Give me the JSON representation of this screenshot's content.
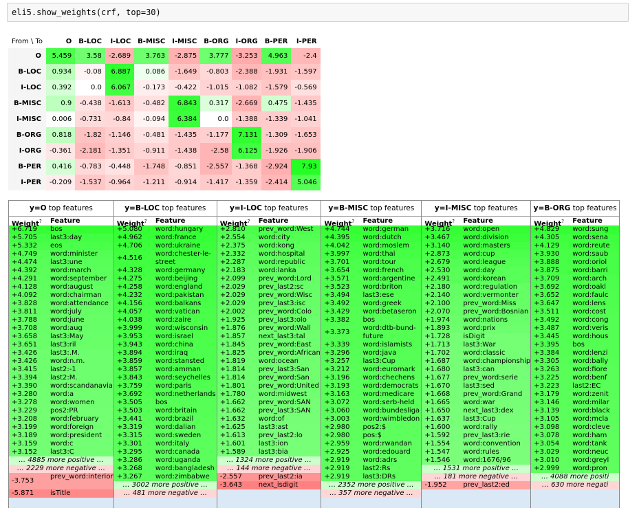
{
  "code_cell": {
    "text": "eli5.show_weights(crf, top=30)"
  },
  "transitions": {
    "corner": "From \\ To",
    "labels": [
      "O",
      "B-LOC",
      "I-LOC",
      "B-MISC",
      "I-MISC",
      "B-ORG",
      "I-ORG",
      "B-PER",
      "I-PER"
    ],
    "rows": [
      [
        "5.459",
        "3.58",
        "-2.689",
        "3.763",
        "-2.875",
        "3.777",
        "-3.253",
        "4.963",
        "-2.4"
      ],
      [
        "0.934",
        "-0.08",
        "6.887",
        "0.086",
        "-1.649",
        "-0.803",
        "-2.388",
        "-1.931",
        "-1.597"
      ],
      [
        "0.392",
        "0.0",
        "6.067",
        "-0.173",
        "-0.422",
        "-1.015",
        "-1.082",
        "-1.579",
        "-0.569"
      ],
      [
        "0.9",
        "-0.438",
        "-1.613",
        "-0.482",
        "6.843",
        "0.317",
        "-2.669",
        "0.475",
        "-1.435"
      ],
      [
        "0.006",
        "-0.731",
        "-0.84",
        "-0.094",
        "6.384",
        "0.0",
        "-1.388",
        "-1.339",
        "-1.041"
      ],
      [
        "0.818",
        "-1.82",
        "-1.146",
        "-0.481",
        "-1.435",
        "-1.177",
        "7.131",
        "-1.309",
        "-1.653"
      ],
      [
        "-0.361",
        "-2.181",
        "-1.351",
        "-0.911",
        "-1.438",
        "-2.58",
        "6.125",
        "-1.926",
        "-1.906"
      ],
      [
        "0.416",
        "-0.783",
        "-0.448",
        "-1.748",
        "-0.851",
        "-2.557",
        "-1.368",
        "-2.924",
        "7.93"
      ],
      [
        "-0.209",
        "-1.537",
        "-0.964",
        "-1.211",
        "-0.914",
        "-1.417",
        "-1.359",
        "-2.414",
        "5.046"
      ]
    ]
  },
  "feature_headers": {
    "weight": "Weight",
    "weight_sup": "?",
    "feature": "Feature",
    "title_suffix": "top features"
  },
  "feature_tables": [
    {
      "label": "y=O",
      "pos": [
        [
          "+6.719",
          "bos"
        ],
        [
          "+5.705",
          "last3:day"
        ],
        [
          "+5.332",
          "eos"
        ],
        [
          "+4.749",
          "word:minister"
        ],
        [
          "+4.474",
          "last3:une"
        ],
        [
          "+4.392",
          "word:march"
        ],
        [
          "+4.291",
          "word:september"
        ],
        [
          "+4.128",
          "word:august"
        ],
        [
          "+4.092",
          "word:chairman"
        ],
        [
          "+3.828",
          "word:attendance"
        ],
        [
          "+3.811",
          "word:july"
        ],
        [
          "+3.788",
          "word:june"
        ],
        [
          "+3.708",
          "word:aug"
        ],
        [
          "+3.658",
          "last3:May"
        ],
        [
          "+3.651",
          "last3:ril"
        ],
        [
          "+3.426",
          "last3:.M."
        ],
        [
          "+3.426",
          "word:n.m."
        ],
        [
          "+3.415",
          "last2:-1"
        ],
        [
          "+3.394",
          "last2:M."
        ],
        [
          "+3.390",
          "word:scandanavia"
        ],
        [
          "+3.280",
          "word:a"
        ],
        [
          "+3.278",
          "word:women"
        ],
        [
          "+3.229",
          "pos2:PR"
        ],
        [
          "+3.208",
          "word:february"
        ],
        [
          "+3.199",
          "word:foreign"
        ],
        [
          "+3.189",
          "word:president"
        ],
        [
          "+3.159",
          "word:c"
        ],
        [
          "+3.152",
          "last3:C"
        ]
      ],
      "pos_more": "… 4885 more positive …",
      "neg_more": "… 2229 more negative …",
      "neg": [
        [
          "-3.753",
          "prev_word:interior"
        ],
        [
          "-5.871",
          "isTitle"
        ]
      ],
      "neg_more_after": ""
    },
    {
      "label": "y=B-LOC",
      "pos": [
        [
          "+5.080",
          "word:hungary"
        ],
        [
          "+4.962",
          "word:france"
        ],
        [
          "+4.706",
          "word:ukraine"
        ],
        [
          "+4.516",
          "word:chester-le-street"
        ],
        [
          "+4.328",
          "word:germany"
        ],
        [
          "+4.275",
          "word:beijing"
        ],
        [
          "+4.258",
          "word:england"
        ],
        [
          "+4.232",
          "word:pakistan"
        ],
        [
          "+4.156",
          "word:balkans"
        ],
        [
          "+4.057",
          "word:vatican"
        ],
        [
          "+4.038",
          "word:zaire"
        ],
        [
          "+3.999",
          "word:wisconsin"
        ],
        [
          "+3.953",
          "word:israel"
        ],
        [
          "+3.943",
          "word:china"
        ],
        [
          "+3.894",
          "word:iraq"
        ],
        [
          "+3.859",
          "word:stansted"
        ],
        [
          "+3.857",
          "word:amman"
        ],
        [
          "+3.843",
          "word:seychelles"
        ],
        [
          "+3.759",
          "word:paris"
        ],
        [
          "+3.692",
          "word:netherlands"
        ],
        [
          "+3.505",
          "bos"
        ],
        [
          "+3.503",
          "word:britain"
        ],
        [
          "+3.441",
          "word:brazil"
        ],
        [
          "+3.319",
          "word:dalian"
        ],
        [
          "+3.315",
          "word:sweden"
        ],
        [
          "+3.301",
          "word:italy"
        ],
        [
          "+3.295",
          "word:canada"
        ],
        [
          "+3.286",
          "word:uganda"
        ],
        [
          "+3.268",
          "word:bangladesh"
        ],
        [
          "+3.267",
          "word:zimbabwe"
        ]
      ],
      "pos_more": "… 3002 more positive …",
      "neg_more": "… 481 more negative …",
      "neg": [],
      "neg_more_after": ""
    },
    {
      "label": "y=I-LOC",
      "pos": [
        [
          "+2.810",
          "prev_word:West"
        ],
        [
          "+2.554",
          "word:city"
        ],
        [
          "+2.375",
          "word:kong"
        ],
        [
          "+2.332",
          "word:hospital"
        ],
        [
          "+2.287",
          "word:republic"
        ],
        [
          "+2.183",
          "word:lanka"
        ],
        [
          "+2.099",
          "prev_word:Lord"
        ],
        [
          "+2.029",
          "prev_last2:sc"
        ],
        [
          "+2.029",
          "prev_word:Wisc"
        ],
        [
          "+2.029",
          "prev_last3:isc"
        ],
        [
          "+2.002",
          "prev_word:Colo"
        ],
        [
          "+1.925",
          "prev_last3:olo"
        ],
        [
          "+1.876",
          "prev_word:Wall"
        ],
        [
          "+1.857",
          "next_last3:tal"
        ],
        [
          "+1.845",
          "prev_word:East"
        ],
        [
          "+1.825",
          "prev_word:African"
        ],
        [
          "+1.819",
          "word:ocean"
        ],
        [
          "+1.814",
          "prev_last3:San"
        ],
        [
          "+1.814",
          "prev_word:San"
        ],
        [
          "+1.801",
          "prev_word:United"
        ],
        [
          "+1.780",
          "word:midwest"
        ],
        [
          "+1.662",
          "prev_word:SAN"
        ],
        [
          "+1.662",
          "prev_last3:SAN"
        ],
        [
          "+1.632",
          "word:of"
        ],
        [
          "+1.625",
          "last3:ast"
        ],
        [
          "+1.613",
          "prev_last2:lo"
        ],
        [
          "+1.601",
          "last3:ion"
        ],
        [
          "+1.589",
          "last3:bia"
        ]
      ],
      "pos_more": "… 1324 more positive …",
      "neg_more": "… 144 more negative …",
      "neg": [
        [
          "-2.557",
          "prev_last2:ia"
        ],
        [
          "-3.643",
          "next_isdigit"
        ]
      ],
      "neg_more_after": ""
    },
    {
      "label": "y=B-MISC",
      "pos": [
        [
          "+4.744",
          "word:german"
        ],
        [
          "+4.395",
          "word:dutch"
        ],
        [
          "+4.042",
          "word:moslem"
        ],
        [
          "+3.997",
          "word:thai"
        ],
        [
          "+3.701",
          "word:tour"
        ],
        [
          "+3.654",
          "word:french"
        ],
        [
          "+3.571",
          "word:argentine"
        ],
        [
          "+3.523",
          "word:briton"
        ],
        [
          "+3.494",
          "last3:ese"
        ],
        [
          "+3.492",
          "word:greek"
        ],
        [
          "+3.429",
          "word:betaseron"
        ],
        [
          "+3.382",
          "bos"
        ],
        [
          "+3.373",
          "word:dtb-bund-future"
        ],
        [
          "+3.339",
          "word:islamists"
        ],
        [
          "+3.296",
          "word:java"
        ],
        [
          "+3.257",
          "last3:Cup"
        ],
        [
          "+3.212",
          "word:euromark"
        ],
        [
          "+3.196",
          "word:chechens"
        ],
        [
          "+3.193",
          "word:democrats"
        ],
        [
          "+3.163",
          "word:medicare"
        ],
        [
          "+3.072",
          "word:serb-held"
        ],
        [
          "+3.060",
          "word:bundesliga"
        ],
        [
          "+3.003",
          "word:wimbledon"
        ],
        [
          "+2.980",
          "pos2:$"
        ],
        [
          "+2.980",
          "pos:$"
        ],
        [
          "+2.959",
          "word:rwandan"
        ],
        [
          "+2.925",
          "word:edouard"
        ],
        [
          "+2.919",
          "word:adrs"
        ],
        [
          "+2.919",
          "last2:Rs"
        ],
        [
          "+2.919",
          "last3:DRs"
        ]
      ],
      "pos_more": "… 2352 more positive …",
      "neg_more": "… 357 more negative …",
      "neg": [],
      "neg_more_after": ""
    },
    {
      "label": "y=I-MISC",
      "pos": [
        [
          "+3.716",
          "word:open"
        ],
        [
          "+3.467",
          "word:division"
        ],
        [
          "+3.140",
          "word:masters"
        ],
        [
          "+2.873",
          "word:cup"
        ],
        [
          "+2.679",
          "word:league"
        ],
        [
          "+2.530",
          "word:day"
        ],
        [
          "+2.491",
          "word:korean"
        ],
        [
          "+2.180",
          "word:regulation"
        ],
        [
          "+2.140",
          "word:vermonter"
        ],
        [
          "+2.100",
          "prev_word:Miss"
        ],
        [
          "+2.070",
          "prev_word:Bosnian"
        ],
        [
          "+1.974",
          "word:nations"
        ],
        [
          "+1.893",
          "word:prix"
        ],
        [
          "+1.728",
          "isDigit"
        ],
        [
          "+1.713",
          "last3:War"
        ],
        [
          "+1.702",
          "word:classic"
        ],
        [
          "+1.687",
          "word:championship"
        ],
        [
          "+1.680",
          "last3:can"
        ],
        [
          "+1.677",
          "prev_word:serie"
        ],
        [
          "+1.670",
          "last3:sed"
        ],
        [
          "+1.668",
          "prev_word:Grand"
        ],
        [
          "+1.665",
          "word:war"
        ],
        [
          "+1.650",
          "next_last3:dex"
        ],
        [
          "+1.637",
          "last3:Cup"
        ],
        [
          "+1.600",
          "word:rally"
        ],
        [
          "+1.592",
          "prev_last3:rie"
        ],
        [
          "+1.554",
          "word:convention"
        ],
        [
          "+1.547",
          "word:rules"
        ],
        [
          "+1.546",
          "word:1676/96"
        ]
      ],
      "pos_more": "… 1531 more positive …",
      "neg_more": "… 181 more negative …",
      "neg": [
        [
          "-1.952",
          "prev_last2:ed"
        ]
      ],
      "neg_more_after": ""
    },
    {
      "label": "y=B-ORG",
      "pos": [
        [
          "+4.829",
          "word:sung"
        ],
        [
          "+4.305",
          "word:sena"
        ],
        [
          "+4.129",
          "word:reute"
        ],
        [
          "+3.930",
          "word:saub"
        ],
        [
          "+3.888",
          "word:oriol"
        ],
        [
          "+3.875",
          "word:barri"
        ],
        [
          "+3.709",
          "word:arch"
        ],
        [
          "+3.692",
          "word:oakl"
        ],
        [
          "+3.652",
          "word:faulc"
        ],
        [
          "+3.647",
          "word:lens"
        ],
        [
          "+3.511",
          "word:cost"
        ],
        [
          "+3.492",
          "word:cong"
        ],
        [
          "+3.487",
          "word:veris"
        ],
        [
          "+3.445",
          "word:hous"
        ],
        [
          "+3.395",
          "bos"
        ],
        [
          "+3.384",
          "word:lenzi"
        ],
        [
          "+3.305",
          "word:bally"
        ],
        [
          "+3.263",
          "word:fiore"
        ],
        [
          "+3.225",
          "word:benf"
        ],
        [
          "+3.223",
          "last2:EC"
        ],
        [
          "+3.179",
          "word:zenit"
        ],
        [
          "+3.146",
          "word:milar"
        ],
        [
          "+3.139",
          "word:black"
        ],
        [
          "+3.105",
          "word:mcla"
        ],
        [
          "+3.098",
          "word:cleve"
        ],
        [
          "+3.078",
          "word:ham"
        ],
        [
          "+3.054",
          "word:tank"
        ],
        [
          "+3.029",
          "word:neuc"
        ],
        [
          "+3.010",
          "word:greyl"
        ],
        [
          "+2.999",
          "word:pron"
        ]
      ],
      "pos_more": "… 4088 more positi",
      "neg_more": "… 630 more negati",
      "neg": [],
      "neg_more_after": ""
    }
  ]
}
